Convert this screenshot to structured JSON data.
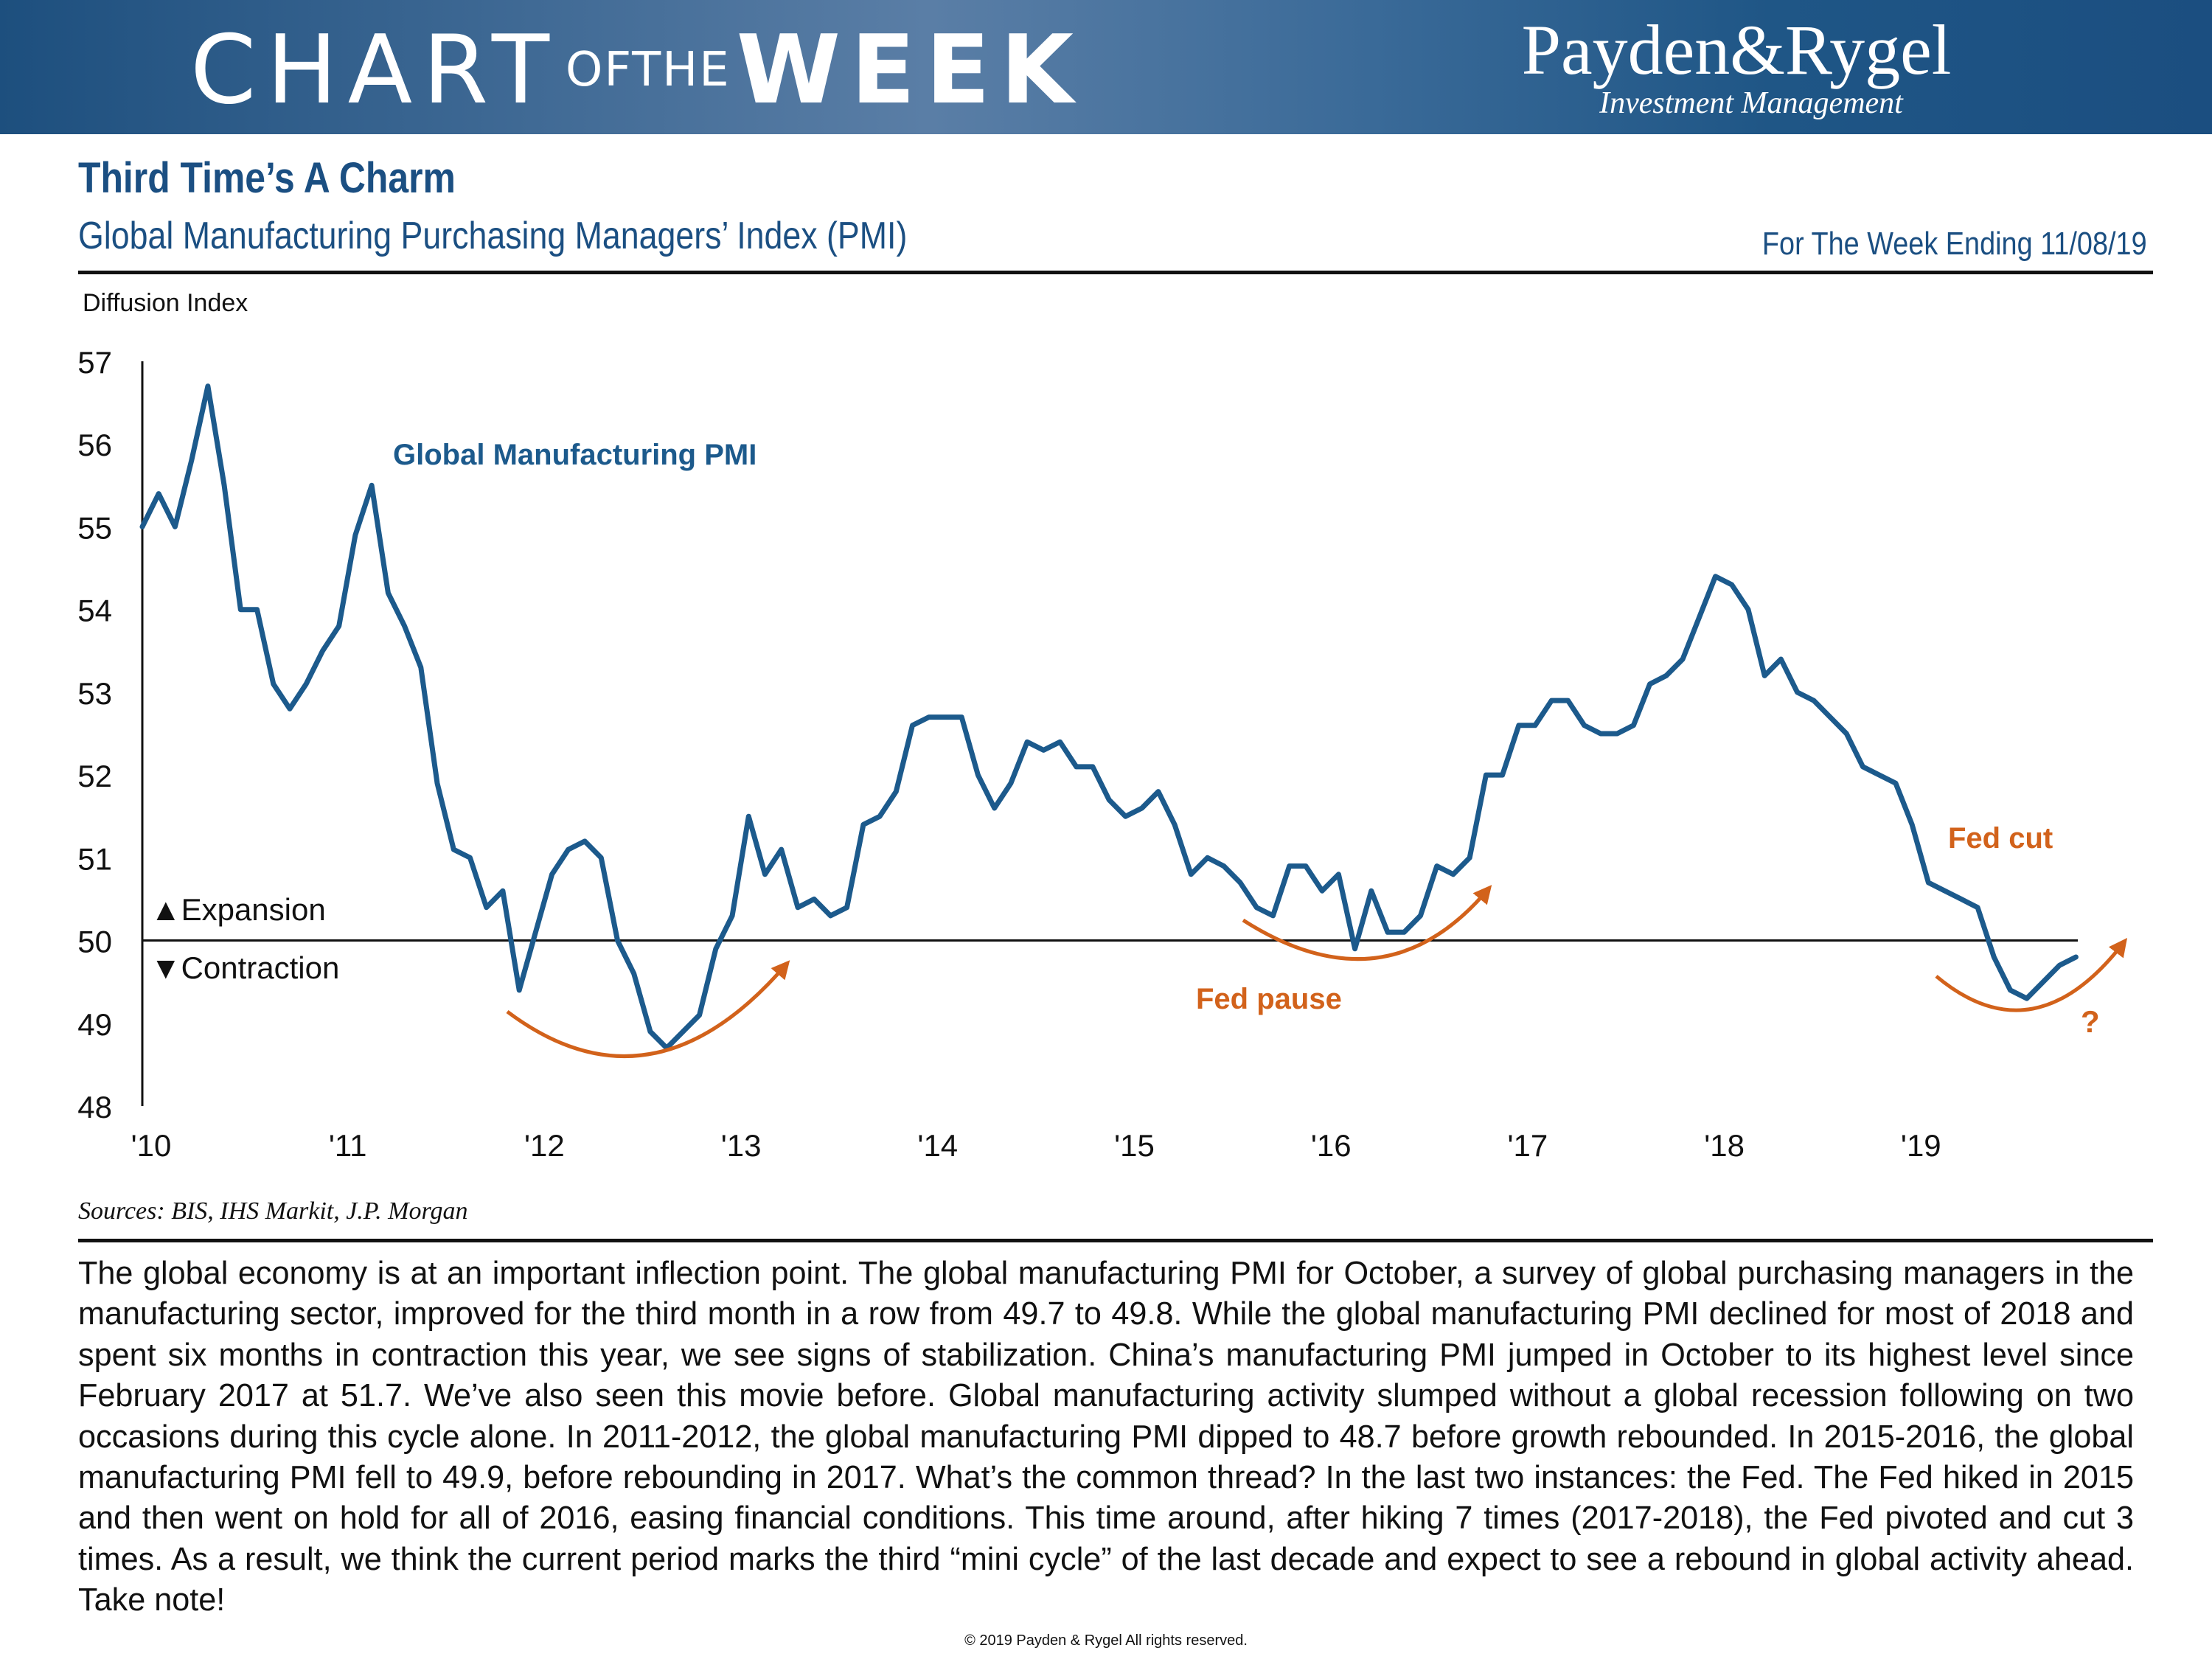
{
  "banner": {
    "word_chart": "CHART",
    "word_of_the": "OFTHE",
    "word_week": "WEEK",
    "logo_main": "Payden&Rygel",
    "logo_sub": "Investment Management"
  },
  "header": {
    "title": "Third Time’s A Charm",
    "subtitle": "Global Manufacturing Purchasing Managers’ Index (PMI)",
    "week_ending": "For The Week Ending 11/08/19"
  },
  "colors": {
    "brand_blue": "#1b4f82",
    "series": "#1c5a8c",
    "annotation": "#d2621b"
  },
  "chart_data": {
    "type": "line",
    "ylabel": "Diffusion Index",
    "ylim": [
      48,
      57
    ],
    "yticks": [
      "48",
      "49",
      "50",
      "51",
      "52",
      "53",
      "54",
      "55",
      "56",
      "57"
    ],
    "xlim": [
      2010.0,
      2020.0
    ],
    "xticks": [
      {
        "x": 2010,
        "label": "'10"
      },
      {
        "x": 2011,
        "label": "'11"
      },
      {
        "x": 2012,
        "label": "'12"
      },
      {
        "x": 2013,
        "label": "'13"
      },
      {
        "x": 2014,
        "label": "'14"
      },
      {
        "x": 2015,
        "label": "'15"
      },
      {
        "x": 2016,
        "label": "'16"
      },
      {
        "x": 2017,
        "label": "'17"
      },
      {
        "x": 2018,
        "label": "'18"
      },
      {
        "x": 2019,
        "label": "'19"
      }
    ],
    "reference_line": 50,
    "series": [
      {
        "name": "Global Manufacturing PMI",
        "x_start": 2010.0,
        "step": 0.08333,
        "values": [
          55.0,
          55.4,
          55.0,
          55.8,
          56.7,
          55.5,
          54.0,
          54.0,
          53.1,
          52.8,
          53.1,
          53.5,
          53.8,
          54.9,
          55.5,
          54.2,
          53.8,
          53.3,
          51.9,
          51.1,
          51.0,
          50.4,
          50.6,
          49.4,
          50.1,
          50.8,
          51.1,
          51.2,
          51.0,
          50.0,
          49.6,
          48.9,
          48.7,
          48.9,
          49.1,
          49.9,
          50.3,
          51.5,
          50.8,
          51.1,
          50.4,
          50.5,
          50.3,
          50.4,
          51.4,
          51.5,
          51.8,
          52.6,
          52.7,
          52.7,
          52.7,
          52.0,
          51.6,
          51.9,
          52.4,
          52.3,
          52.4,
          52.1,
          52.1,
          51.7,
          51.5,
          51.6,
          51.8,
          51.4,
          50.8,
          51.0,
          50.9,
          50.7,
          50.4,
          50.3,
          50.9,
          50.9,
          50.6,
          50.8,
          49.9,
          50.6,
          50.1,
          50.1,
          50.3,
          50.9,
          50.8,
          51.0,
          52.0,
          52.0,
          52.6,
          52.6,
          52.9,
          52.9,
          52.6,
          52.5,
          52.5,
          52.6,
          53.1,
          53.2,
          53.4,
          53.9,
          54.4,
          54.3,
          54.0,
          53.2,
          53.4,
          53.0,
          52.9,
          52.7,
          52.5,
          52.1,
          52.0,
          51.9,
          51.4,
          50.7,
          50.6,
          50.5,
          50.4,
          49.8,
          49.4,
          49.3,
          49.5,
          49.7,
          49.8
        ]
      }
    ],
    "annotations": {
      "series_label": "Global Manufacturing PMI",
      "expansion": "▲Expansion",
      "contraction": "▼Contraction",
      "fed_pause": "Fed pause",
      "fed_cut": "Fed cut",
      "question": "?"
    }
  },
  "footer": {
    "sources": "Sources: BIS, IHS Markit, J.P. Morgan",
    "body": "The global economy is at an important inflection point. The global manufacturing PMI for October, a survey of global purchasing managers in the manufacturing sector, improved for the third month in a row from 49.7 to 49.8. While the global manufacturing PMI declined for most of 2018 and spent six months in contraction this year, we see signs of stabilization. China’s manufacturing PMI jumped in October to its highest level since February 2017 at 51.7. We’ve also seen this movie before. Global manufacturing activity slumped without a global recession following on two occasions during this cycle alone. In 2011-2012, the global manufacturing PMI dipped to 48.7 before growth rebounded. In 2015-2016, the global manufacturing PMI fell to 49.9, before rebounding in 2017. What’s the common thread? In the last two instances: the Fed. The Fed hiked in 2015 and then went on hold for all of 2016, easing financial conditions. This time around, after hiking 7 times (2017-2018), the Fed pivoted and cut 3 times. As a result, we think the current period marks the third “mini cycle” of the last decade and expect to see a rebound in global activity ahead. Take note!",
    "copyright": "© 2019 Payden  & Rygel  All rights reserved."
  }
}
